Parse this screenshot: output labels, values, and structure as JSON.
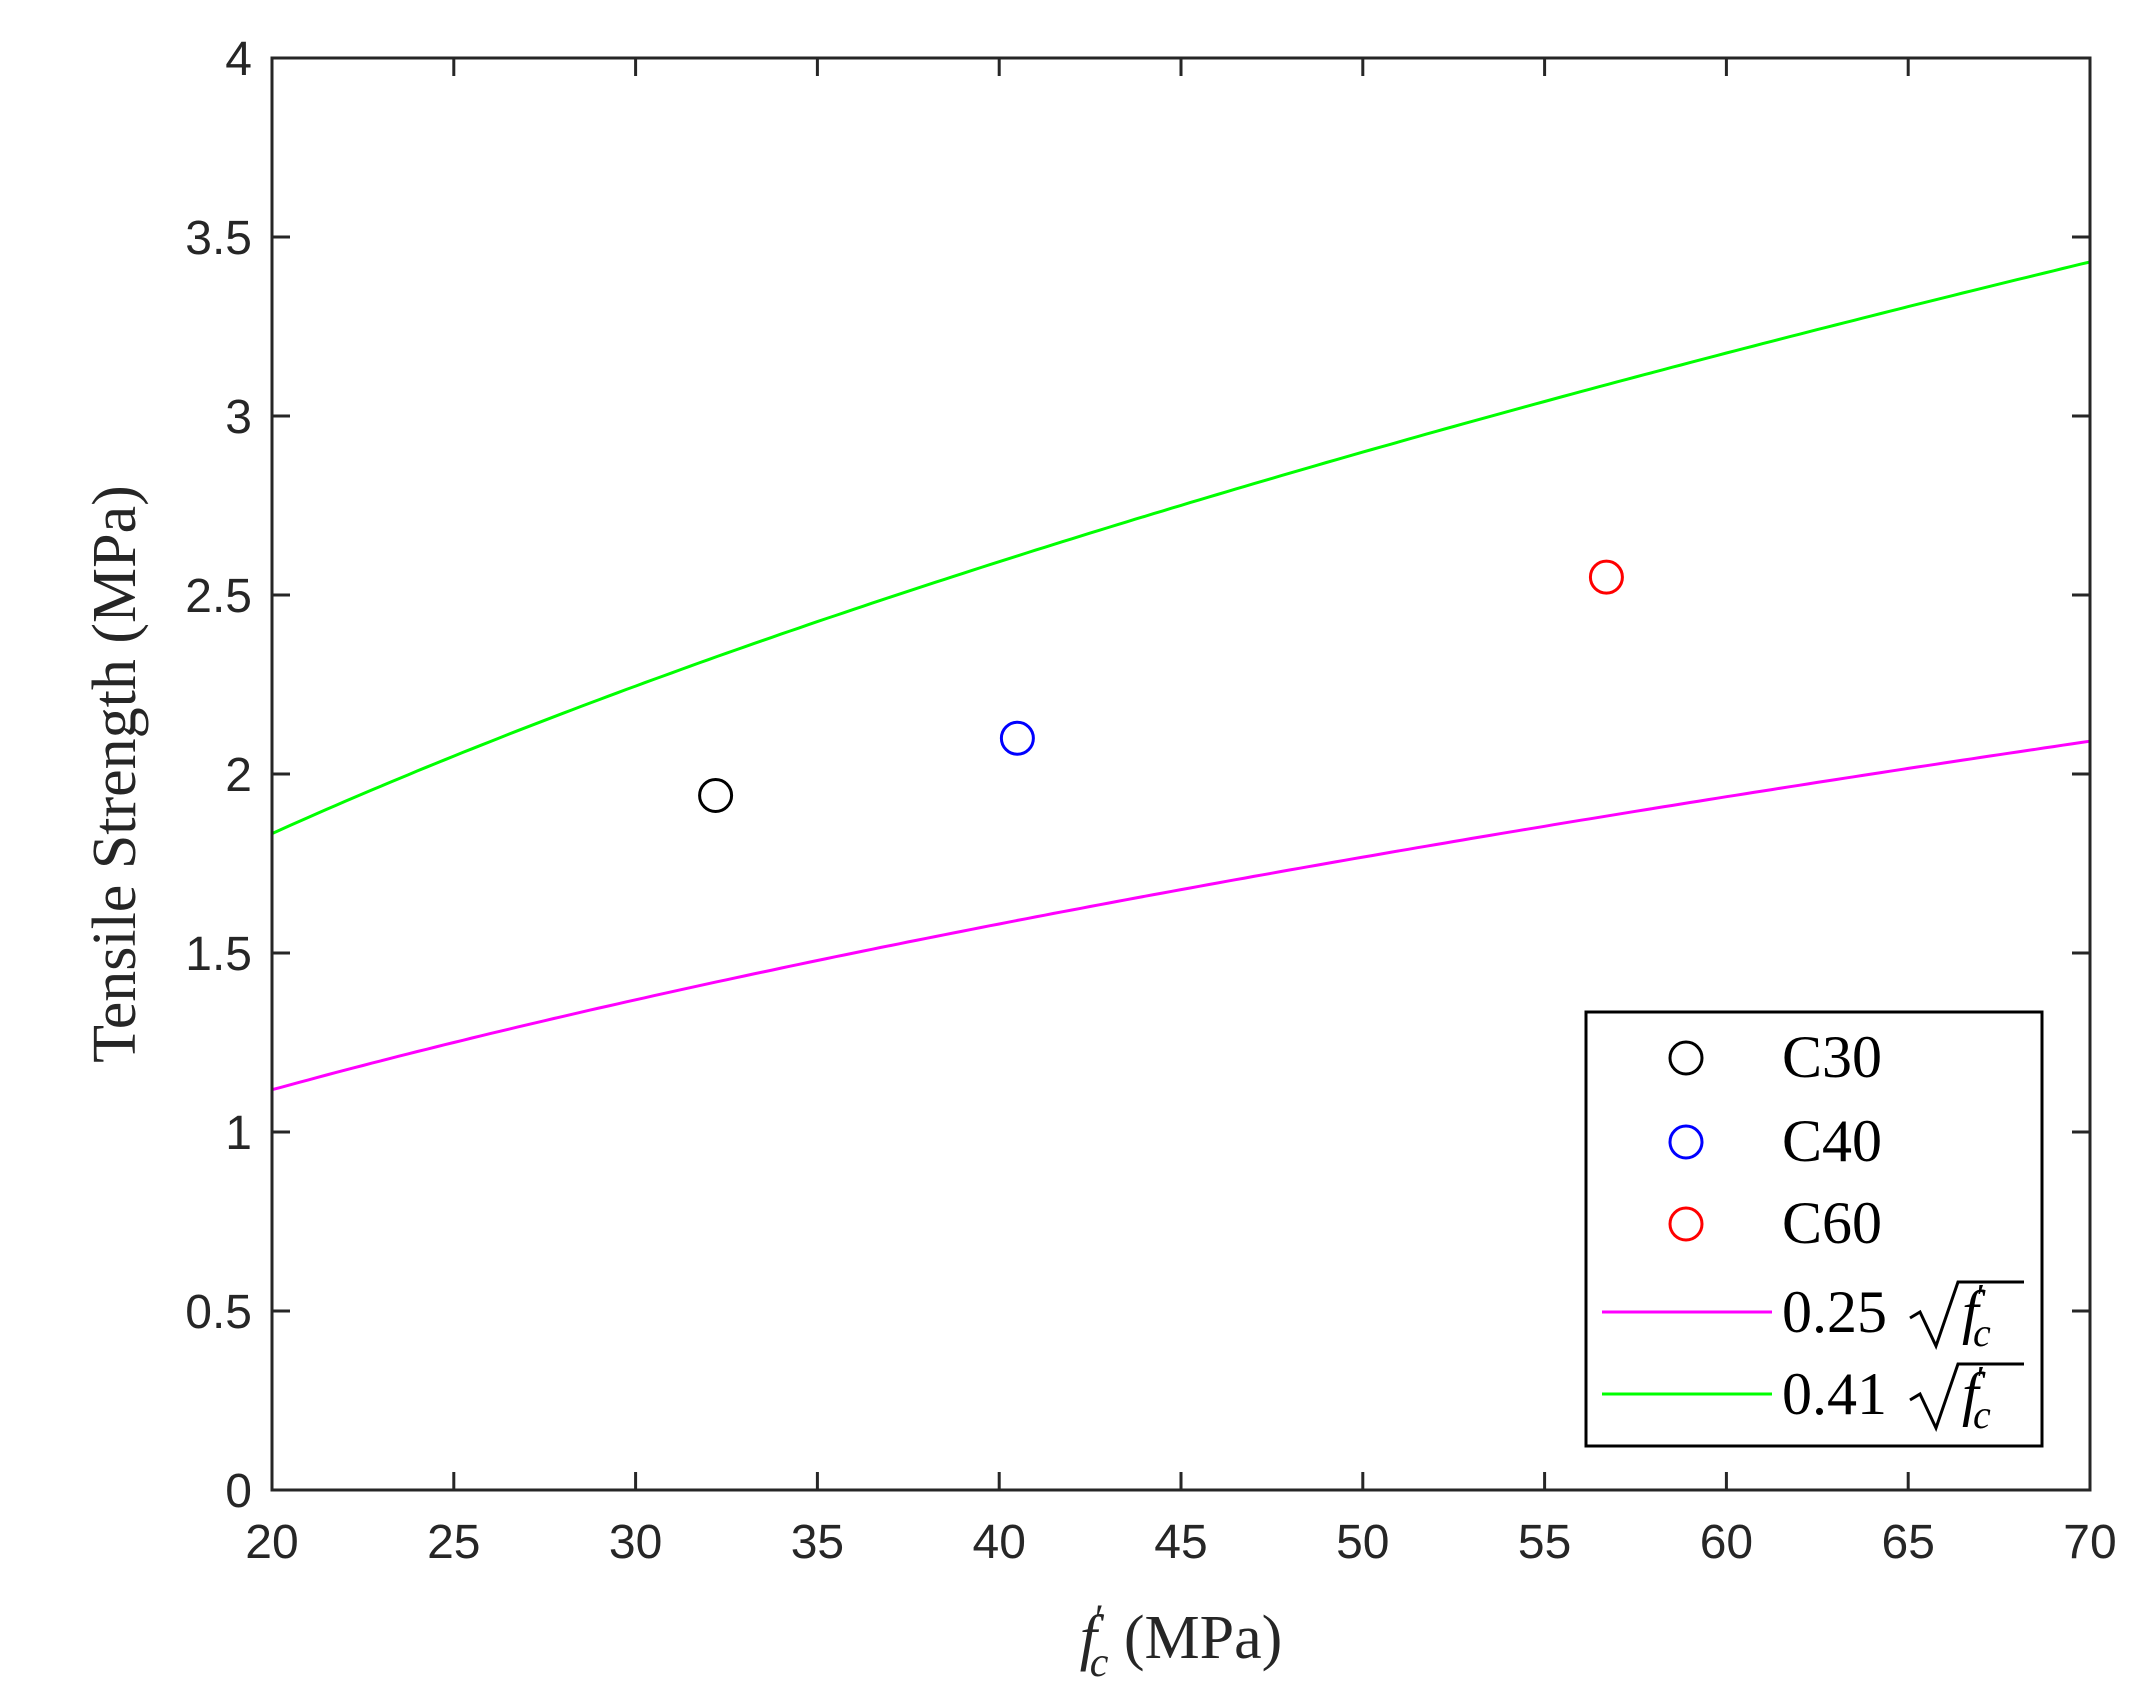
{
  "chart_data": {
    "type": "scatter",
    "xlabel": "f′c (MPa)",
    "ylabel": "Tensile Strength (MPa)",
    "xlim": [
      20,
      70
    ],
    "ylim": [
      0,
      4
    ],
    "xticks": [
      "20",
      "25",
      "30",
      "35",
      "40",
      "45",
      "50",
      "55",
      "60",
      "65",
      "70"
    ],
    "yticks": [
      "0",
      "0.5",
      "1",
      "1.5",
      "2",
      "2.5",
      "3",
      "3.5",
      "4"
    ],
    "grid": false,
    "legend_position": "bottom-right",
    "series": [
      {
        "name": "C30",
        "kind": "marker",
        "color": "#000000",
        "points": [
          [
            32.2,
            1.94
          ]
        ]
      },
      {
        "name": "C40",
        "kind": "marker",
        "color": "#0000ff",
        "points": [
          [
            40.5,
            2.1
          ]
        ]
      },
      {
        "name": "C60",
        "kind": "marker",
        "color": "#ff0000",
        "points": [
          [
            56.7,
            2.55
          ]
        ]
      },
      {
        "name": "0.25√f′c",
        "kind": "line",
        "color": "#ff00ff",
        "coefficient": 0.25,
        "x_range": [
          20,
          70
        ]
      },
      {
        "name": "0.41√f′c",
        "kind": "line",
        "color": "#00ff00",
        "coefficient": 0.41,
        "x_range": [
          20,
          70
        ]
      }
    ],
    "legend": [
      {
        "label_number": "C30",
        "label_sqrt": ""
      },
      {
        "label_number": "C40",
        "label_sqrt": ""
      },
      {
        "label_number": "C60",
        "label_sqrt": ""
      },
      {
        "label_number": "0.25",
        "label_sqrt": "f′c"
      },
      {
        "label_number": "0.41",
        "label_sqrt": "f′c"
      }
    ]
  }
}
